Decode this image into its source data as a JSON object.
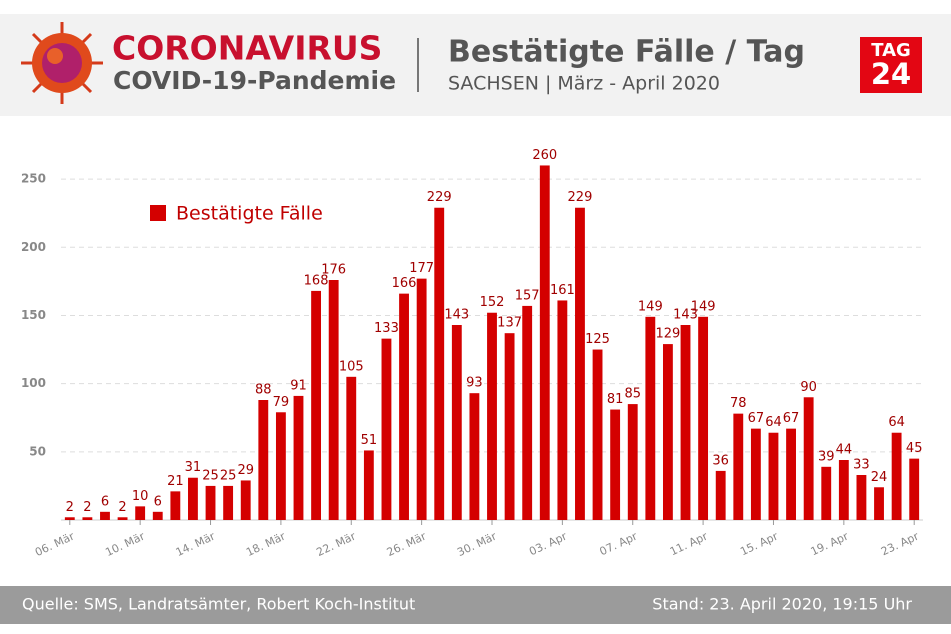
{
  "header": {
    "title": "CORONAVIRUS",
    "subtitle": "COVID-19-Pandemie",
    "chart_title": "Bestätigte Fälle / Tag",
    "chart_subtitle": "SACHSEN | März - April 2020",
    "logo_top": "TAG",
    "logo_bottom": "24"
  },
  "footer": {
    "source": "Quelle: SMS, Landratsämter, Robert Koch-Institut",
    "date": "Stand: 23. April 2020, 19:15 Uhr"
  },
  "chart_data": {
    "type": "bar",
    "categories": [
      "06. Mär",
      null,
      null,
      null,
      "10. Mär",
      null,
      null,
      null,
      "14. Mär",
      null,
      null,
      null,
      "18. Mär",
      null,
      null,
      null,
      "22. Mär",
      null,
      null,
      null,
      "26. Mär",
      null,
      null,
      null,
      "30. Mär",
      null,
      null,
      null,
      "03. Apr",
      null,
      null,
      null,
      "07. Apr",
      null,
      null,
      null,
      "11. Apr",
      null,
      null,
      null,
      "15. Apr",
      null,
      null,
      null,
      "19. Apr",
      null,
      null,
      null,
      "23. Apr"
    ],
    "series": [
      {
        "name": "Bestätigte Fälle",
        "color": "#d40000",
        "values": [
          2,
          2,
          6,
          2,
          10,
          6,
          21,
          31,
          25,
          25,
          29,
          88,
          79,
          91,
          168,
          176,
          105,
          51,
          133,
          166,
          177,
          229,
          143,
          93,
          152,
          137,
          157,
          260,
          161,
          229,
          125,
          81,
          85,
          149,
          129,
          143,
          149,
          36,
          78,
          67,
          64,
          67,
          90,
          39,
          44,
          33,
          24,
          64,
          45
        ]
      }
    ],
    "ylim": [
      0,
      275
    ],
    "yticks": [
      50,
      100,
      150,
      200,
      250
    ],
    "grid": true,
    "legend": "top-left"
  }
}
